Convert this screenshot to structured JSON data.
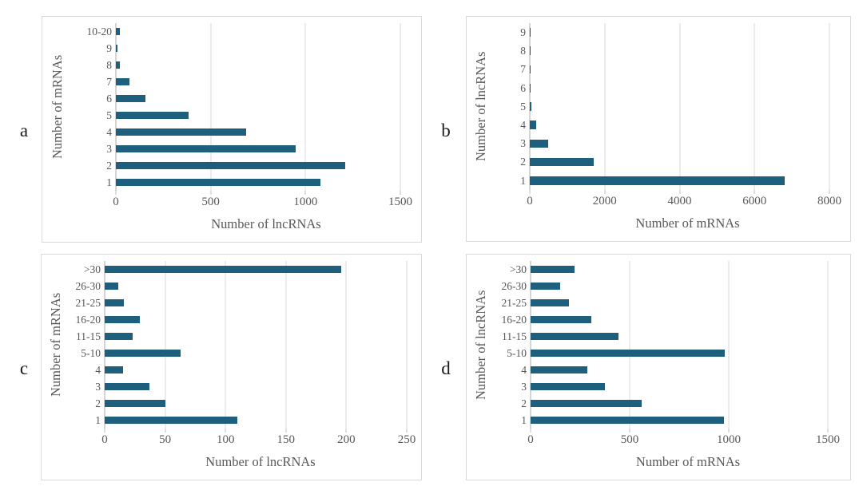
{
  "figure": {
    "bar_color": "#1e5f7e",
    "gridline_color": "#d9d9d9",
    "axis_line_color": "#ababab",
    "text_color": "#595959",
    "panel_border_color": "#d9d9d9",
    "background": "#ffffff"
  },
  "chart_data": [
    {
      "panel_label": "a",
      "type": "bar",
      "orientation": "horizontal",
      "ylabel": "Number of mRNAs",
      "xlabel": "Number of lncRNAs",
      "categories": [
        "10-20",
        "9",
        "8",
        "7",
        "6",
        "5",
        "4",
        "3",
        "2",
        "1"
      ],
      "values": [
        20,
        8,
        20,
        70,
        155,
        385,
        685,
        950,
        1210,
        1080
      ],
      "xlim": [
        0,
        1500
      ],
      "xticks": [
        0,
        500,
        1000,
        1500
      ],
      "grid": true,
      "legend": false
    },
    {
      "panel_label": "b",
      "type": "bar",
      "orientation": "horizontal",
      "ylabel": "Number of lncRNAs",
      "xlabel": "Number of mRNAs",
      "categories": [
        "9",
        "8",
        "7",
        "6",
        "5",
        "4",
        "3",
        "2",
        "1"
      ],
      "values": [
        20,
        20,
        25,
        30,
        50,
        160,
        500,
        1700,
        6800
      ],
      "xlim": [
        0,
        8000
      ],
      "xticks": [
        0,
        2000,
        4000,
        6000,
        8000
      ],
      "grid": true,
      "legend": false
    },
    {
      "panel_label": "c",
      "type": "bar",
      "orientation": "horizontal",
      "ylabel": "Number of mRNAs",
      "xlabel": "Number of lncRNAs",
      "categories": [
        ">30",
        "26-30",
        "21-25",
        "16-20",
        "11-15",
        "5-10",
        "4",
        "3",
        "2",
        "1"
      ],
      "values": [
        196,
        11,
        16,
        29,
        23,
        63,
        15,
        37,
        50,
        110
      ],
      "xlim": [
        0,
        250
      ],
      "xticks": [
        0,
        50,
        100,
        150,
        200,
        250
      ],
      "grid": true,
      "legend": false
    },
    {
      "panel_label": "d",
      "type": "bar",
      "orientation": "horizontal",
      "ylabel": "Number of lncRNAs",
      "xlabel": "Number of mRNAs",
      "categories": [
        ">30",
        "26-30",
        "21-25",
        "16-20",
        "11-15",
        "5-10",
        "4",
        "3",
        "2",
        "1"
      ],
      "values": [
        220,
        150,
        195,
        305,
        445,
        980,
        285,
        375,
        560,
        975
      ],
      "xlim": [
        0,
        1500
      ],
      "xticks": [
        0,
        500,
        1000,
        1500
      ],
      "grid": true,
      "legend": false
    }
  ]
}
